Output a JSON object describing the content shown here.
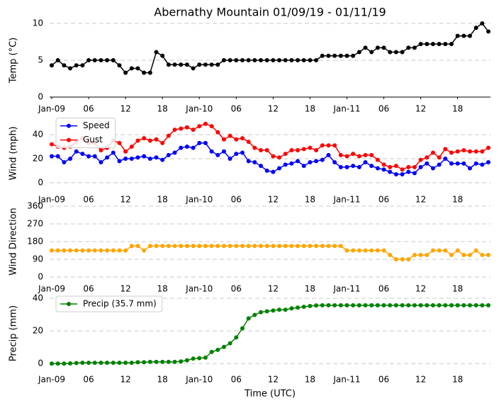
{
  "chart_data": [
    {
      "type": "line",
      "title": "Abernathy Mountain 01/09/19 - 01/11/19",
      "ylabel": "Temp (°C)",
      "x": [
        0,
        1,
        2,
        3,
        4,
        5,
        6,
        7,
        8,
        9,
        10,
        11,
        12,
        13,
        14,
        15,
        16,
        17,
        18,
        19,
        20,
        21,
        22,
        23,
        24,
        25,
        26,
        27,
        28,
        29,
        30,
        31,
        32,
        33,
        34,
        35,
        36,
        37,
        38,
        39,
        40,
        41,
        42,
        43,
        44,
        45,
        46,
        47,
        48,
        49,
        50,
        51,
        52,
        53,
        54,
        55,
        56,
        57,
        58,
        59,
        60,
        61,
        62,
        63,
        64,
        65,
        66,
        67,
        68,
        69,
        70,
        71
      ],
      "series": [
        {
          "color": "#000000",
          "values": [
            4.3,
            5.0,
            4.3,
            3.9,
            4.3,
            4.3,
            5.0,
            5.0,
            5.0,
            5.0,
            5.0,
            4.3,
            3.3,
            3.9,
            3.9,
            3.3,
            3.3,
            6.1,
            5.6,
            4.4,
            4.4,
            4.4,
            4.4,
            3.9,
            4.4,
            4.4,
            4.4,
            4.4,
            5.0,
            5.0,
            5.0,
            5.0,
            5.0,
            5.0,
            5.0,
            5.0,
            5.0,
            5.0,
            5.0,
            5.0,
            5.0,
            5.0,
            5.0,
            5.0,
            5.6,
            5.6,
            5.6,
            5.6,
            5.6,
            5.6,
            6.1,
            6.7,
            6.1,
            6.7,
            6.7,
            6.1,
            6.1,
            6.1,
            6.7,
            6.7,
            7.2,
            7.2,
            7.2,
            7.2,
            7.2,
            7.2,
            8.3,
            8.3,
            8.3,
            9.4,
            10.0,
            8.9
          ]
        }
      ],
      "xlim": [
        0,
        71
      ],
      "xticks": [
        {
          "value": 0,
          "label": "Jan-09"
        },
        {
          "value": 6,
          "label": "06"
        },
        {
          "value": 12,
          "label": "12"
        },
        {
          "value": 18,
          "label": "18"
        },
        {
          "value": 24,
          "label": "Jan-10"
        },
        {
          "value": 30,
          "label": "06"
        },
        {
          "value": 36,
          "label": "12"
        },
        {
          "value": 42,
          "label": "18"
        },
        {
          "value": 48,
          "label": "Jan-11"
        },
        {
          "value": 54,
          "label": "06"
        },
        {
          "value": 60,
          "label": "12"
        },
        {
          "value": 66,
          "label": "18"
        }
      ],
      "ylim": [
        0,
        10
      ],
      "yticks": [
        0,
        5,
        10
      ],
      "grid": true,
      "x_axis_line": true
    },
    {
      "type": "line",
      "ylabel": "Wind (mph)",
      "x": [
        0,
        1,
        2,
        3,
        4,
        5,
        6,
        7,
        8,
        9,
        10,
        11,
        12,
        13,
        14,
        15,
        16,
        17,
        18,
        19,
        20,
        21,
        22,
        23,
        24,
        25,
        26,
        27,
        28,
        29,
        30,
        31,
        32,
        33,
        34,
        35,
        36,
        37,
        38,
        39,
        40,
        41,
        42,
        43,
        44,
        45,
        46,
        47,
        48,
        49,
        50,
        51,
        52,
        53,
        54,
        55,
        56,
        57,
        58,
        59,
        60,
        61,
        62,
        63,
        64,
        65,
        66,
        67,
        68,
        69,
        70,
        71
      ],
      "series": [
        {
          "name": "Speed",
          "color": "#0000ff",
          "values": [
            22,
            22,
            17,
            20,
            26,
            24,
            22,
            22,
            17,
            21,
            25,
            18,
            20,
            20,
            21,
            22,
            20,
            21,
            19,
            23,
            25,
            29,
            30,
            29,
            33,
            33,
            26,
            23,
            26,
            20,
            24,
            25,
            18,
            17,
            14,
            10,
            9,
            12,
            15,
            16,
            18,
            14,
            17,
            18,
            19,
            23,
            17,
            13,
            13,
            14,
            13,
            17,
            14,
            12,
            11,
            9,
            7,
            7,
            9,
            8,
            13,
            16,
            12,
            15,
            20,
            16,
            16,
            16,
            12,
            16,
            15,
            17
          ]
        },
        {
          "name": "Gust",
          "color": "#ff0000",
          "values": [
            32,
            30,
            29,
            30,
            34,
            37,
            33,
            33,
            27,
            29,
            35,
            33,
            26,
            30,
            35,
            37,
            35,
            36,
            33,
            39,
            44,
            45,
            46,
            44,
            47,
            49,
            47,
            42,
            36,
            39,
            36,
            37,
            34,
            29,
            27,
            27,
            22,
            21,
            24,
            27,
            27,
            28,
            29,
            27,
            31,
            31,
            31,
            23,
            22,
            24,
            22,
            23,
            23,
            19,
            15,
            13,
            14,
            11,
            13,
            13,
            19,
            21,
            25,
            21,
            28,
            25,
            26,
            27,
            26,
            26,
            26,
            29
          ]
        }
      ],
      "xlim": [
        0,
        71
      ],
      "xticks": [
        {
          "value": 0,
          "label": "Jan-09"
        },
        {
          "value": 6,
          "label": "06"
        },
        {
          "value": 12,
          "label": "12"
        },
        {
          "value": 18,
          "label": "18"
        },
        {
          "value": 24,
          "label": "Jan-10"
        },
        {
          "value": 30,
          "label": "06"
        },
        {
          "value": 36,
          "label": "12"
        },
        {
          "value": 42,
          "label": "18"
        },
        {
          "value": 48,
          "label": "Jan-11"
        },
        {
          "value": 54,
          "label": "06"
        },
        {
          "value": 60,
          "label": "12"
        },
        {
          "value": 66,
          "label": "18"
        }
      ],
      "ylim": [
        -3,
        52
      ],
      "yticks": [
        0,
        20,
        40
      ],
      "grid": true,
      "legend": "upper left"
    },
    {
      "type": "line",
      "ylabel": "Wind Direction",
      "x": [
        0,
        1,
        2,
        3,
        4,
        5,
        6,
        7,
        8,
        9,
        10,
        11,
        12,
        13,
        14,
        15,
        16,
        17,
        18,
        19,
        20,
        21,
        22,
        23,
        24,
        25,
        26,
        27,
        28,
        29,
        30,
        31,
        32,
        33,
        34,
        35,
        36,
        37,
        38,
        39,
        40,
        41,
        42,
        43,
        44,
        45,
        46,
        47,
        48,
        49,
        50,
        51,
        52,
        53,
        54,
        55,
        56,
        57,
        58,
        59,
        60,
        61,
        62,
        63,
        64,
        65,
        66,
        67,
        68,
        69,
        70,
        71
      ],
      "series": [
        {
          "color": "#ffa500",
          "values": [
            135,
            135,
            135,
            135,
            135,
            135,
            135,
            135,
            135,
            135,
            135,
            135,
            135,
            158,
            158,
            135,
            158,
            158,
            158,
            158,
            158,
            158,
            158,
            158,
            158,
            158,
            158,
            158,
            158,
            158,
            158,
            158,
            158,
            158,
            158,
            158,
            158,
            158,
            158,
            158,
            158,
            158,
            158,
            158,
            158,
            158,
            158,
            158,
            135,
            135,
            135,
            135,
            135,
            135,
            135,
            112,
            90,
            90,
            90,
            112,
            112,
            112,
            135,
            135,
            135,
            112,
            135,
            112,
            112,
            135,
            112,
            112
          ]
        }
      ],
      "xlim": [
        0,
        71
      ],
      "xticks": [
        {
          "value": 0,
          "label": "Jan-09"
        },
        {
          "value": 6,
          "label": "06"
        },
        {
          "value": 12,
          "label": "12"
        },
        {
          "value": 18,
          "label": "18"
        },
        {
          "value": 24,
          "label": "Jan-10"
        },
        {
          "value": 30,
          "label": "06"
        },
        {
          "value": 36,
          "label": "12"
        },
        {
          "value": 42,
          "label": "18"
        },
        {
          "value": 48,
          "label": "Jan-11"
        },
        {
          "value": 54,
          "label": "06"
        },
        {
          "value": 60,
          "label": "12"
        },
        {
          "value": 66,
          "label": "18"
        }
      ],
      "ylim": [
        0,
        360
      ],
      "yticks": [
        0,
        90,
        180,
        270,
        360
      ],
      "grid": true
    },
    {
      "type": "line",
      "ylabel": "Precip (mm)",
      "xlabel": "Time (UTC)",
      "x": [
        0,
        1,
        2,
        3,
        4,
        5,
        6,
        7,
        8,
        9,
        10,
        11,
        12,
        13,
        14,
        15,
        16,
        17,
        18,
        19,
        20,
        21,
        22,
        23,
        24,
        25,
        26,
        27,
        28,
        29,
        30,
        31,
        32,
        33,
        34,
        35,
        36,
        37,
        38,
        39,
        40,
        41,
        42,
        43,
        44,
        45,
        46,
        47,
        48,
        49,
        50,
        51,
        52,
        53,
        54,
        55,
        56,
        57,
        58,
        59,
        60,
        61,
        62,
        63,
        64,
        65,
        66,
        67,
        68,
        69,
        70,
        71
      ],
      "series": [
        {
          "name": "Precip (35.7 mm)",
          "color": "#008000",
          "values": [
            0,
            0,
            0,
            0.1,
            0.3,
            0.5,
            0.5,
            0.5,
            0.5,
            0.5,
            0.5,
            0.5,
            0.5,
            0.5,
            0.8,
            0.8,
            1.0,
            1.0,
            1.0,
            1.0,
            1.0,
            1.3,
            2.0,
            3.0,
            3.3,
            3.6,
            7.1,
            8.4,
            10.2,
            12.4,
            16.0,
            21.6,
            27.7,
            29.8,
            31.5,
            32.0,
            32.5,
            33.0,
            33.0,
            33.8,
            34.3,
            34.8,
            35.3,
            35.6,
            35.7,
            35.7,
            35.7,
            35.7,
            35.7,
            35.7,
            35.7,
            35.7,
            35.7,
            35.7,
            35.7,
            35.7,
            35.7,
            35.7,
            35.7,
            35.7,
            35.7,
            35.7,
            35.7,
            35.7,
            35.7,
            35.7,
            35.7,
            35.7,
            35.7,
            35.7,
            35.7,
            35.7
          ]
        }
      ],
      "xlim": [
        0,
        71
      ],
      "xticks": [
        {
          "value": 0,
          "label": "Jan-09"
        },
        {
          "value": 6,
          "label": "06"
        },
        {
          "value": 12,
          "label": "12"
        },
        {
          "value": 18,
          "label": "18"
        },
        {
          "value": 24,
          "label": "Jan-10"
        },
        {
          "value": 30,
          "label": "06"
        },
        {
          "value": 36,
          "label": "12"
        },
        {
          "value": 42,
          "label": "18"
        },
        {
          "value": 48,
          "label": "Jan-11"
        },
        {
          "value": 54,
          "label": "06"
        },
        {
          "value": 60,
          "label": "12"
        },
        {
          "value": 66,
          "label": "18"
        }
      ],
      "ylim": [
        -3,
        40
      ],
      "yticks": [
        0,
        20,
        40
      ],
      "grid": true,
      "legend": "upper left"
    }
  ]
}
